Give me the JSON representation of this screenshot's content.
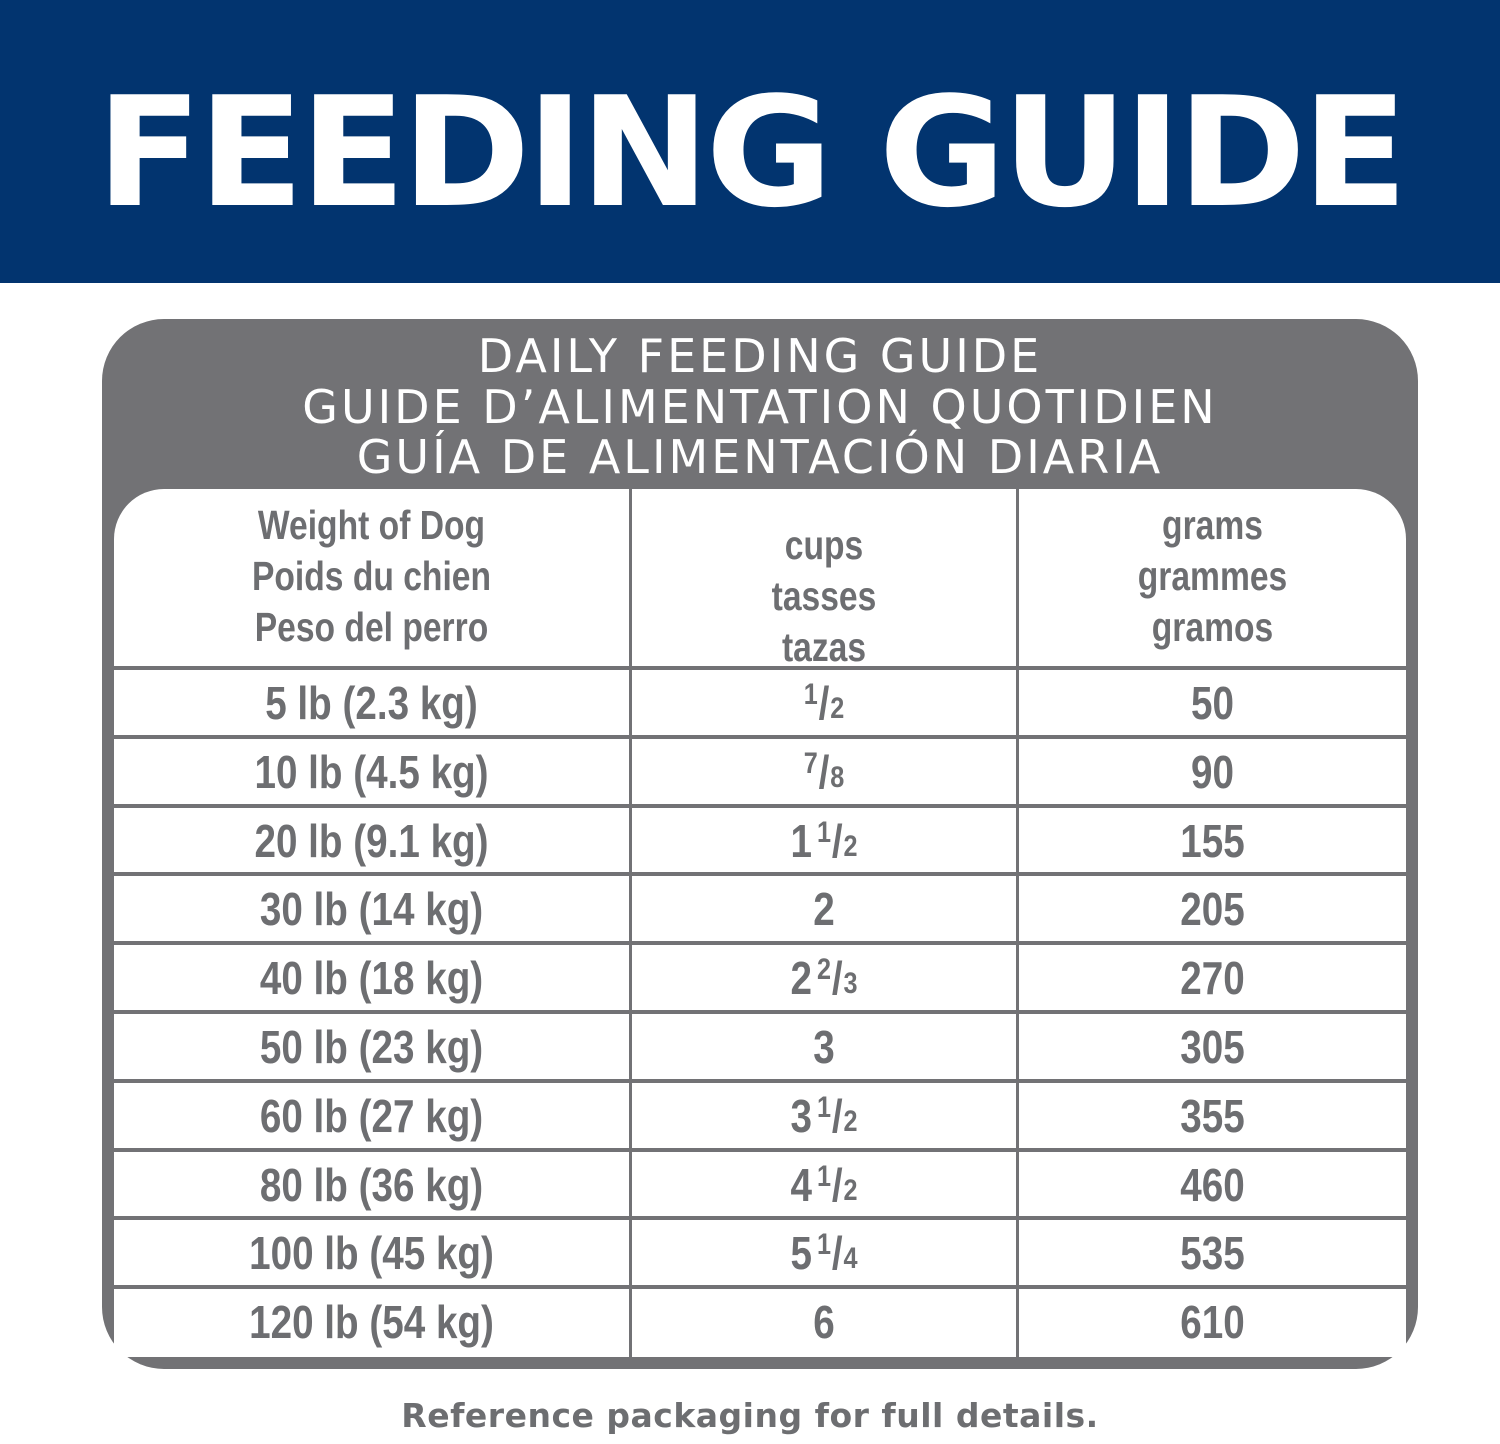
{
  "banner": {
    "title": "FEEDING GUIDE",
    "background_color": "#02346f",
    "text_color": "#ffffff"
  },
  "panel": {
    "background_color": "#727275",
    "title_lines": [
      "DAILY FEEDING GUIDE",
      "GUIDE D’ALIMENTATION QUOTIDIEN",
      "GUÍA DE ALIMENTACIÓN DIARIA"
    ]
  },
  "table": {
    "columns": [
      {
        "lines": [
          "Weight of Dog",
          "Poids du chien",
          "Peso del perro"
        ]
      },
      {
        "lines": [
          "cups",
          "tasses",
          "tazas"
        ]
      },
      {
        "lines": [
          "grams",
          "grammes",
          "gramos"
        ]
      }
    ],
    "rows": [
      {
        "weight": "5 lb (2.3 kg)",
        "cups": {
          "whole": "",
          "num": "1",
          "den": "2"
        },
        "cups_text": "1/2",
        "grams": "50"
      },
      {
        "weight": "10 lb (4.5 kg)",
        "cups": {
          "whole": "",
          "num": "7",
          "den": "8"
        },
        "cups_text": "7/8",
        "grams": "90"
      },
      {
        "weight": "20 lb (9.1 kg)",
        "cups": {
          "whole": "1",
          "num": "1",
          "den": "2"
        },
        "cups_text": "1 1/2",
        "grams": "155"
      },
      {
        "weight": "30 lb (14 kg)",
        "cups": {
          "whole": "2",
          "num": "",
          "den": ""
        },
        "cups_text": "2",
        "grams": "205"
      },
      {
        "weight": "40 lb (18 kg)",
        "cups": {
          "whole": "2",
          "num": "2",
          "den": "3"
        },
        "cups_text": "2 2/3",
        "grams": "270"
      },
      {
        "weight": "50 lb (23 kg)",
        "cups": {
          "whole": "3",
          "num": "",
          "den": ""
        },
        "cups_text": "3",
        "grams": "305"
      },
      {
        "weight": "60 lb (27 kg)",
        "cups": {
          "whole": "3",
          "num": "1",
          "den": "2"
        },
        "cups_text": "3 1/2",
        "grams": "355"
      },
      {
        "weight": "80 lb (36 kg)",
        "cups": {
          "whole": "4",
          "num": "1",
          "den": "2"
        },
        "cups_text": "4 1/2",
        "grams": "460"
      },
      {
        "weight": "100 lb (45 kg)",
        "cups": {
          "whole": "5",
          "num": "1",
          "den": "4"
        },
        "cups_text": "5 1/4",
        "grams": "535"
      },
      {
        "weight": "120 lb (54 kg)",
        "cups": {
          "whole": "6",
          "num": "",
          "den": ""
        },
        "cups_text": "6",
        "grams": "610"
      }
    ],
    "text_color": "#6d6e71",
    "grid_color": "#727275"
  },
  "footnote": "Reference packaging for full details."
}
